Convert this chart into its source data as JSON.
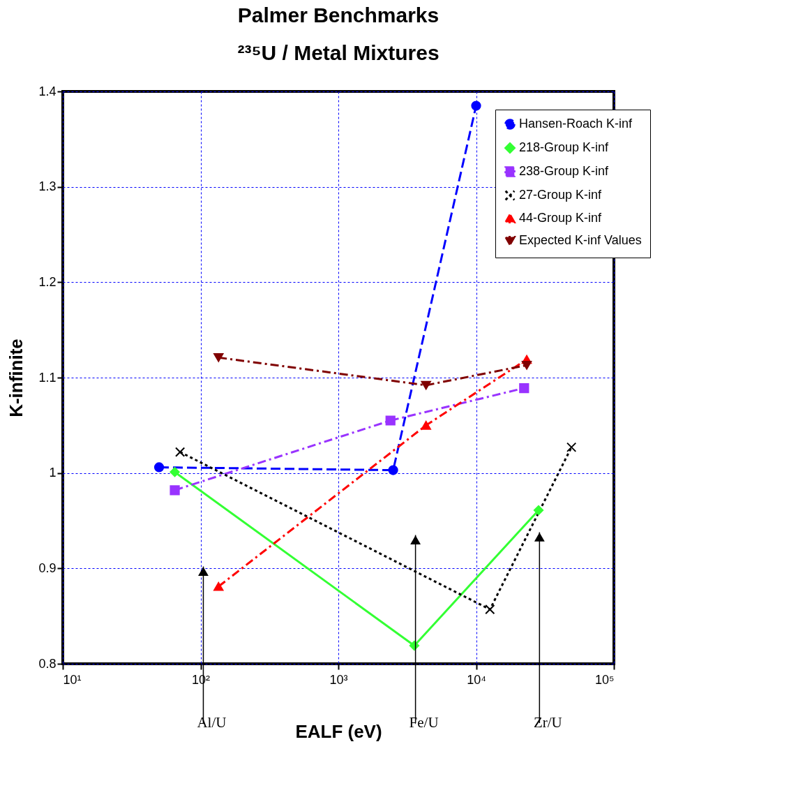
{
  "chart_data": {
    "type": "line",
    "title": "Palmer Benchmarks",
    "subtitle": "²³⁵U / Metal Mixtures",
    "xlabel": "EALF (eV)",
    "ylabel": "K-infinite",
    "log": "x",
    "xlim": [
      10,
      100000
    ],
    "xticks": [
      {
        "value": 10,
        "label": "10¹"
      },
      {
        "value": 100,
        "label": "10²"
      },
      {
        "value": 1000,
        "label": "10³"
      },
      {
        "value": 10000,
        "label": "10⁴"
      },
      {
        "value": 100000,
        "label": "10⁵"
      }
    ],
    "ylim": [
      0.8,
      1.4
    ],
    "yticks": [
      0.8,
      0.9,
      1,
      1.1,
      1.2,
      1.3,
      1.4
    ],
    "grid": true,
    "legend": "top right",
    "series": [
      {
        "name": "Hansen-Roach K-inf",
        "color": "#0000ff",
        "marker": "circle",
        "line_style": "dashed",
        "x": [
          50,
          2500,
          10000
        ],
        "values": [
          1.006,
          1.003,
          1.385
        ]
      },
      {
        "name": "218-Group K-inf",
        "color": "#33ff33",
        "marker": "diamond",
        "line_style": "solid",
        "x": [
          65,
          3560,
          28400
        ],
        "values": [
          1.001,
          0.819,
          0.961
        ]
      },
      {
        "name": "238-Group K-inf",
        "color": "#9933ff",
        "marker": "square",
        "line_style": "dashdot",
        "x": [
          65,
          2390,
          22300
        ],
        "values": [
          0.982,
          1.055,
          1.089
        ]
      },
      {
        "name": "27-Group K-inf",
        "color": "#000000",
        "marker": "cross",
        "line_style": "dotted",
        "x": [
          71,
          12600,
          49200
        ],
        "values": [
          1.022,
          0.857,
          1.027
        ]
      },
      {
        "name": "44-Group K-inf",
        "color": "#ff0000",
        "marker": "triangle",
        "line_style": "dashdot",
        "x": [
          135,
          4330,
          23300
        ],
        "values": [
          0.881,
          1.05,
          1.119
        ]
      },
      {
        "name": "Expected K-inf Values",
        "color": "#800000",
        "marker": "triangle-down",
        "line_style": "dashdot",
        "x": [
          135,
          4330,
          23300
        ],
        "values": [
          1.121,
          1.092,
          1.113
        ]
      }
    ],
    "annotations": [
      "Al/U",
      "Fe/U",
      "Zr/U"
    ]
  }
}
